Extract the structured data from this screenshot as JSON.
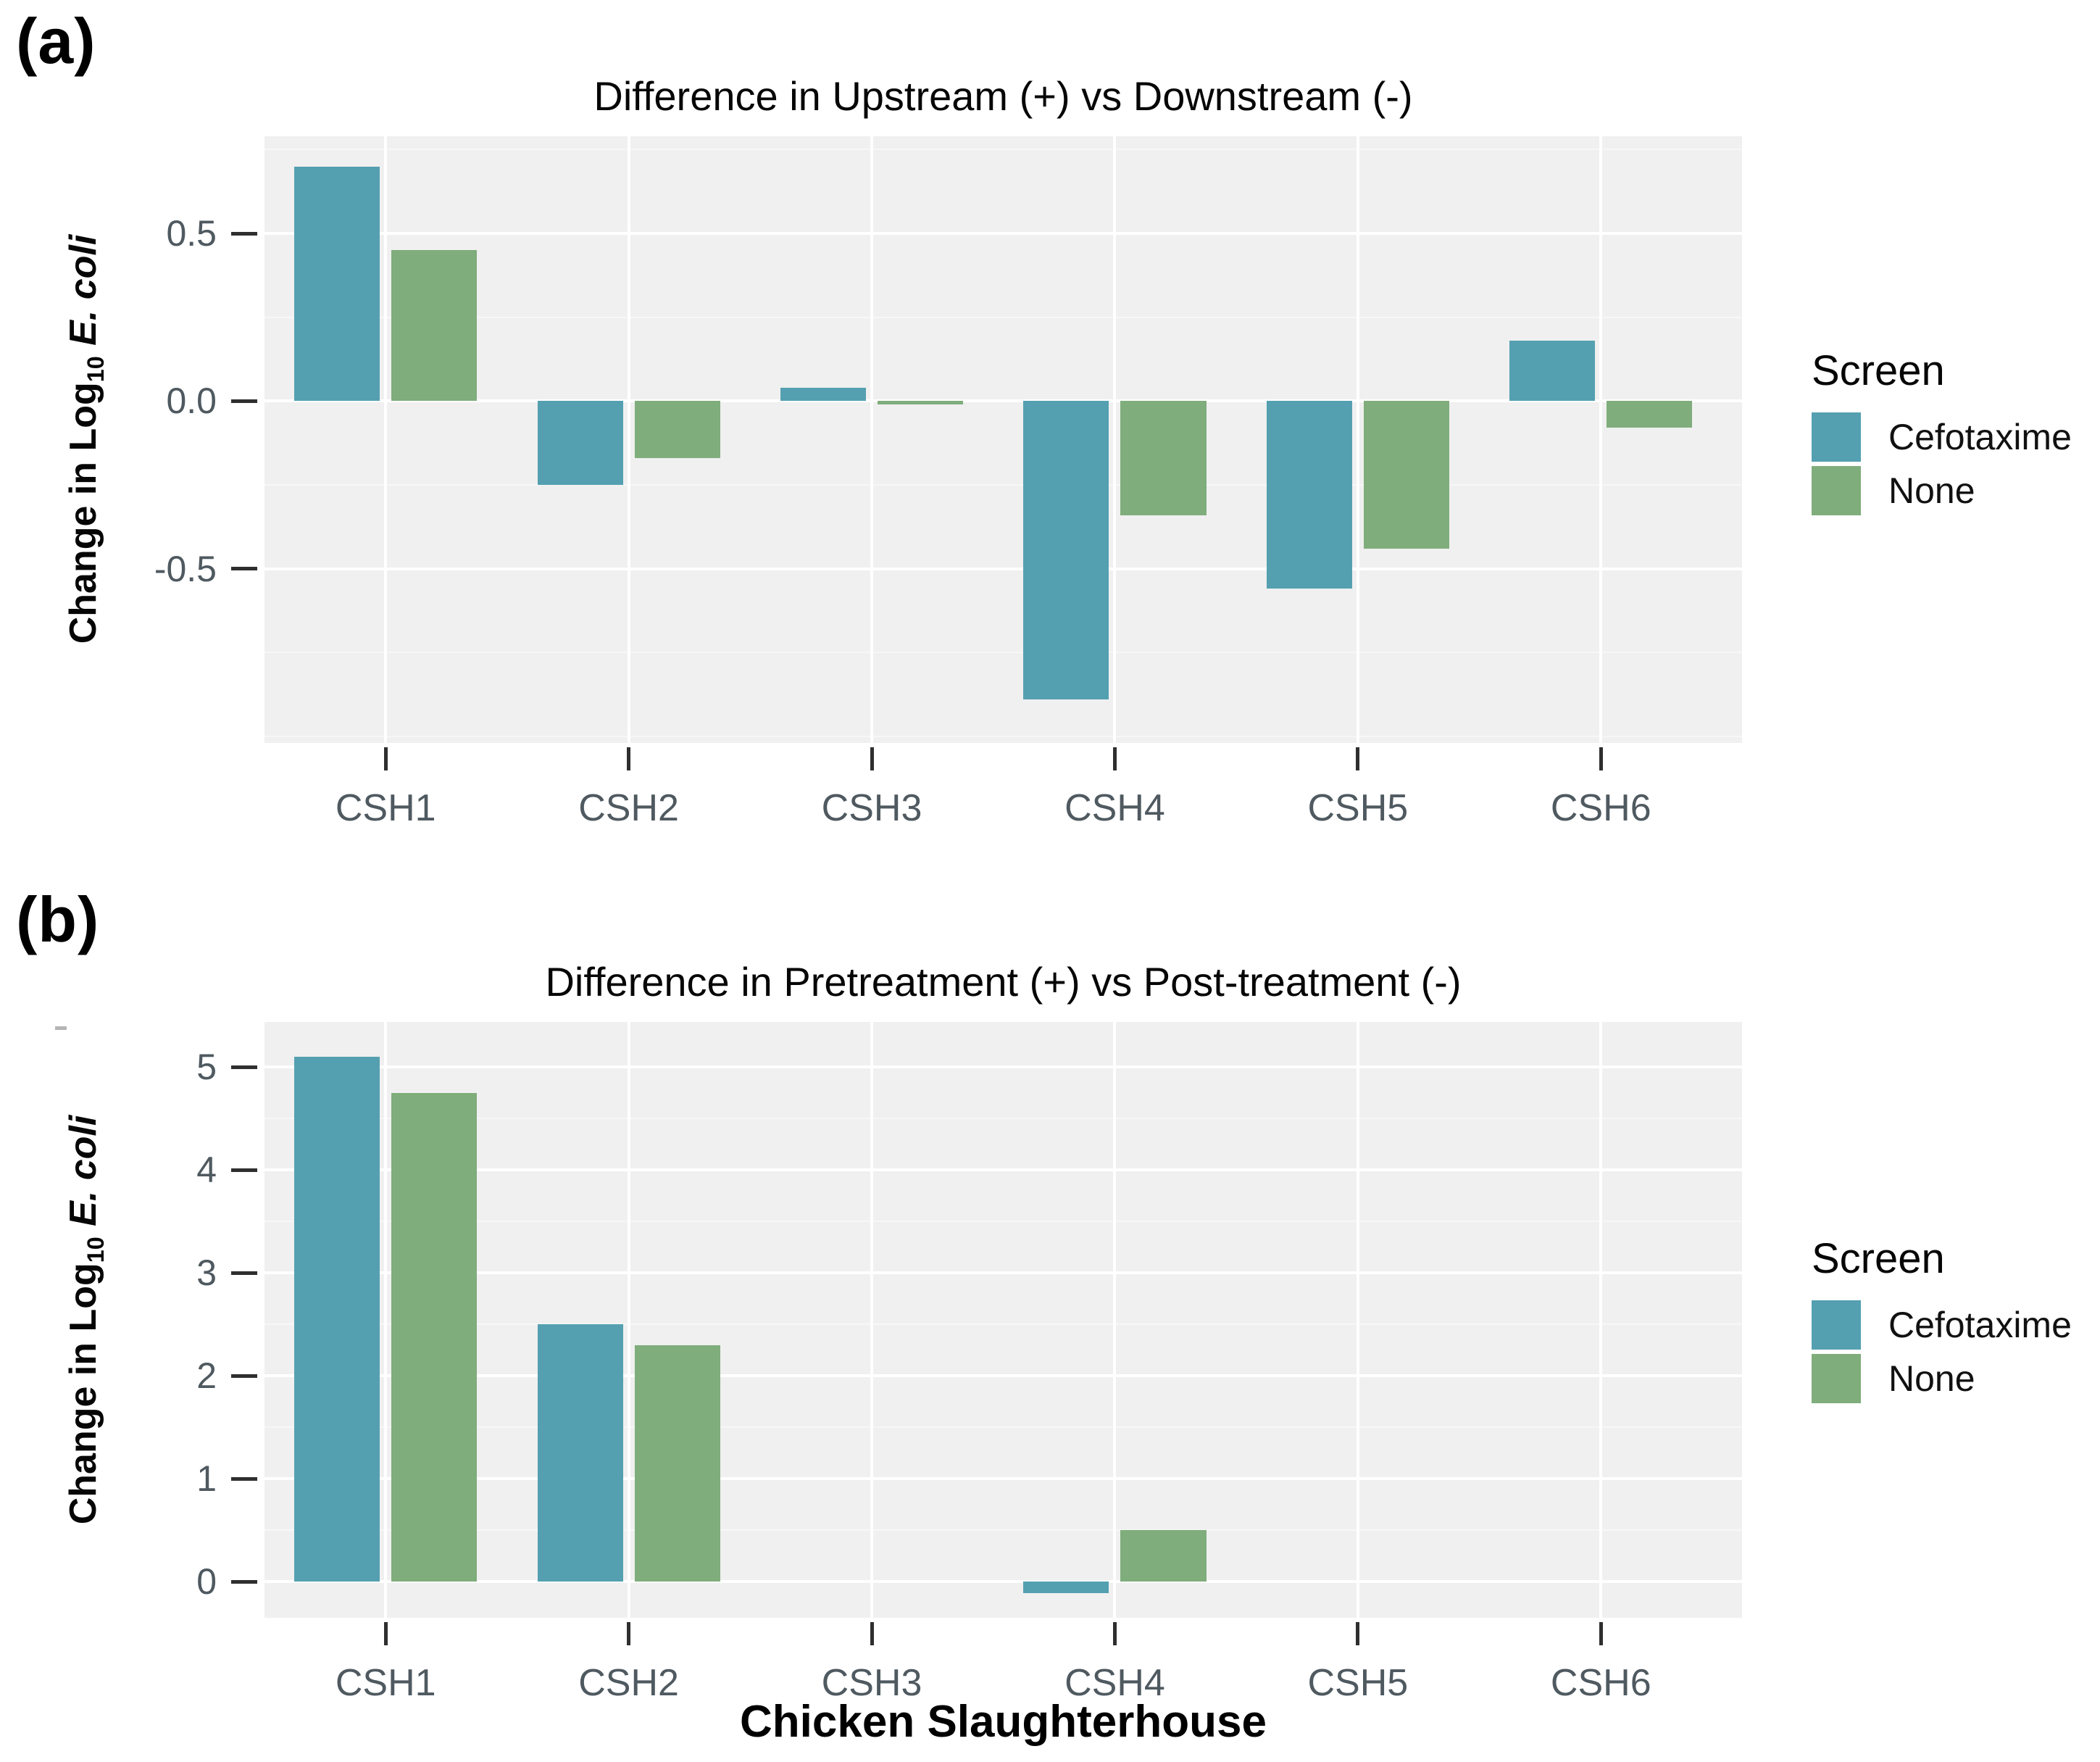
{
  "figure": {
    "panel_a_label": "(a)",
    "panel_b_label": "(b)"
  },
  "legend": {
    "title": "Screen",
    "items": [
      {
        "label": "Cefotaxime",
        "color": "#54a0b1"
      },
      {
        "label": "None",
        "color": "#7fad7b"
      }
    ]
  },
  "colors": {
    "cefotaxime": "#54a0b1",
    "none": "#7fad7b",
    "panel_background": "#f0f0f0",
    "grid_major": "#ffffff",
    "grid_minor": "#f7f7f7",
    "tick_mark": "#2f2f2f",
    "axis_text": "#4f5960",
    "title_text": "#060606"
  },
  "chart_data": [
    {
      "type": "bar",
      "panel": "a",
      "title": "Difference in Upstream (+) vs Downstream (-)",
      "ylabel": {
        "prefix": "Change in Log",
        "sub": "10",
        "suffix": " E. coli"
      },
      "xlabel": "",
      "categories": [
        "CSH1",
        "CSH2",
        "CSH3",
        "CSH4",
        "CSH5",
        "CSH6"
      ],
      "series": [
        {
          "name": "Cefotaxime",
          "values": [
            0.7,
            -0.25,
            0.04,
            -0.89,
            -0.56,
            0.18
          ]
        },
        {
          "name": "None",
          "values": [
            0.45,
            -0.17,
            -0.01,
            -0.34,
            -0.44,
            -0.08
          ]
        }
      ],
      "ylim": [
        -1.02,
        0.79
      ],
      "yticks": [
        {
          "value": 0.5,
          "label": "0.5"
        },
        {
          "value": 0.0,
          "label": "0.0"
        },
        {
          "value": -0.5,
          "label": "-0.5"
        }
      ],
      "minor_step": 0.25,
      "grid": true,
      "legend_position": "right"
    },
    {
      "type": "bar",
      "panel": "b",
      "title": "Difference in Pretreatment (+) vs Post-treatment (-)",
      "ylabel": {
        "prefix": "Change in Log",
        "sub": "10",
        "suffix": " E. coli"
      },
      "xlabel": "Chicken Slaughterhouse",
      "categories": [
        "CSH1",
        "CSH2",
        "CSH3",
        "CSH4",
        "CSH5",
        "CSH6"
      ],
      "series": [
        {
          "name": "Cefotaxime",
          "values": [
            5.1,
            2.5,
            0,
            -0.11,
            0,
            0
          ]
        },
        {
          "name": "None",
          "values": [
            4.75,
            2.3,
            0,
            0.5,
            0,
            0
          ]
        }
      ],
      "ylim": [
        -0.35,
        5.44
      ],
      "yticks": [
        {
          "value": 5,
          "label": "5"
        },
        {
          "value": 4,
          "label": "4"
        },
        {
          "value": 3,
          "label": "3"
        },
        {
          "value": 2,
          "label": "2"
        },
        {
          "value": 1,
          "label": "1"
        },
        {
          "value": 0,
          "label": "0"
        }
      ],
      "minor_step": 0.5,
      "grid": true,
      "legend_position": "right"
    }
  ]
}
